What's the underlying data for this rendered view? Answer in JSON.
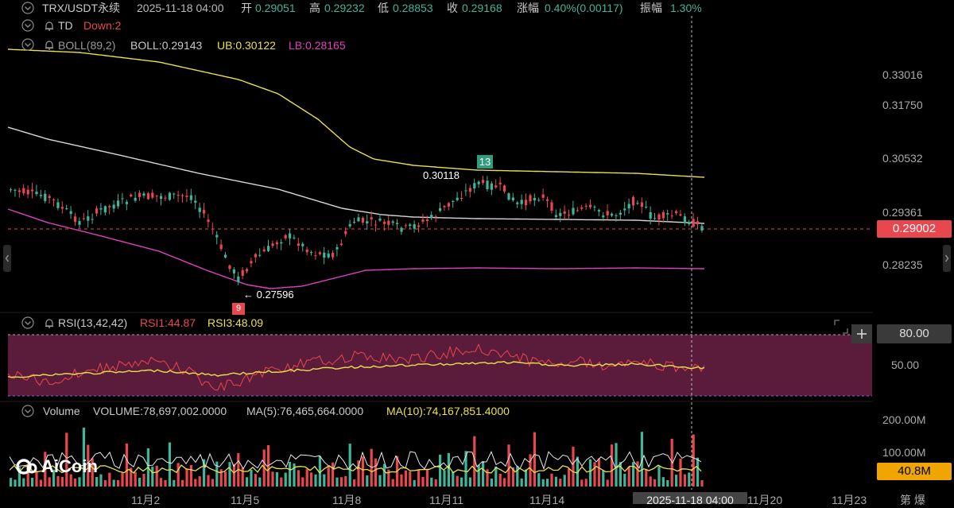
{
  "header": {
    "symbol": "TRX/USDT永续",
    "datetime": "2025-11-18 04:00",
    "open_label": "开",
    "open": "0.29051",
    "high_label": "高",
    "high": "0.29232",
    "low_label": "低",
    "low": "0.28853",
    "close_label": "收",
    "close": "0.29168",
    "change_label": "涨幅",
    "change": "0.40%(0.00117)",
    "amplitude_label": "振幅",
    "amplitude": "1.30%"
  },
  "td": {
    "name": "TD",
    "value": "Down:2"
  },
  "boll": {
    "name": "BOLL(89,2)",
    "boll": "BOLL:0.29143",
    "ub": "UB:0.30122",
    "lb": "LB:0.28165"
  },
  "price_axis": {
    "ticks": [
      "0.33016",
      "0.31750",
      "0.30532",
      "0.29361",
      "0.28235"
    ],
    "current": "0.29002"
  },
  "annotations": {
    "high_marker": "0.30118",
    "high_count": "13",
    "low_marker": "← 0.27596",
    "low_count": "9"
  },
  "rsi": {
    "name": "RSI(13,42,42)",
    "rsi1": "RSI1:44.87",
    "rsi3": "RSI3:48.09",
    "upper": "80.00",
    "mid": "50.00"
  },
  "volume": {
    "name": "Volume",
    "volume": "VOLUME:78,697,002.0000",
    "ma5": "MA(5):76,465,664.0000",
    "ma10": "MA(10):74,167,851.4000",
    "ticks": [
      "200.00M",
      "100.00M"
    ],
    "current": "40.8M"
  },
  "time_axis": {
    "labels": [
      "11月2",
      "11月5",
      "11月8",
      "11月11",
      "11月14",
      "11月20",
      "11月23"
    ],
    "crosshair": "2025-11-18 04:00",
    "right_controls": "第 爆"
  },
  "watermark": "AiCoin",
  "colors": {
    "up": "#3fb59a",
    "down": "#e8474d",
    "ub": "#e8e24a",
    "lb": "#e040c0",
    "mid": "#d8d8d8",
    "rsi_fill": "#5a1c3a",
    "volume_tag": "#f0a500"
  }
}
